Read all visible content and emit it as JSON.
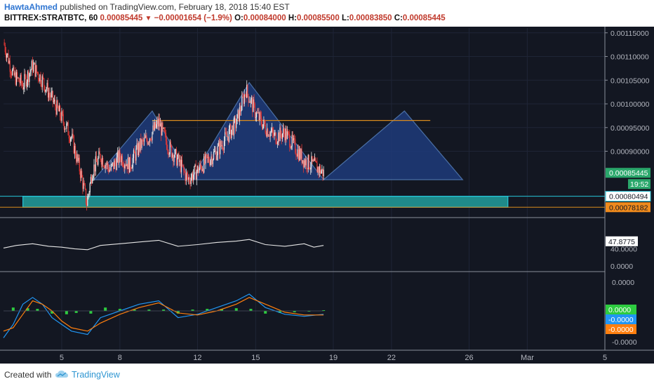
{
  "header": {
    "author": "HawtaAhmed",
    "published": "published on TradingView.com, February 18, 2018 15:40 EST",
    "symbol": "BITTREX:STRATBTC, 60",
    "last": "0.00085445",
    "change": "−0.00001654 (−1.9%)",
    "o_label": "O:",
    "o_value": "0.00084000",
    "h_label": "H:",
    "h_value": "0.00085500",
    "l_label": "L:",
    "l_value": "0.00083850",
    "c_label": "C:",
    "c_value": "0.00085445"
  },
  "footer": {
    "created_with": "Created with",
    "brand": "TradingView"
  },
  "colors": {
    "background": "#131722",
    "up": "#e9e9e9",
    "down": "#e53935",
    "triangle_fill": "#1f3b7a",
    "triangle_stroke": "#4a6fa5",
    "zone_fill": "#1f8a8a",
    "zone_stroke": "#26c6da",
    "resistance": "#d98a1d",
    "rsi": "#e6e6e6",
    "macd": "#2196f3",
    "signal": "#ff7f0e",
    "histogram": "#2ecc40",
    "last_price_bg": "#2aa76b",
    "countdown_bg": "#2aa76b",
    "cyan_label_bg": "#26c6da",
    "orange_label_bg": "#ef8a1c"
  },
  "chart_data": {
    "type": "candlestick",
    "price_axis": {
      "ticks": [
        "0.00115000",
        "0.00110000",
        "0.00105000",
        "0.00100000",
        "0.00095000",
        "0.00090000"
      ],
      "tick_values": [
        0.00115,
        0.0011,
        0.00105,
        0.001,
        0.00095,
        0.0009
      ],
      "range": [
        0.00076,
        0.00116
      ]
    },
    "time_axis": {
      "ticks": [
        "5",
        "8",
        "12",
        "15",
        "19",
        "22",
        "26",
        "Mar",
        "5"
      ],
      "tick_dates": [
        "2018-02-05",
        "2018-02-08",
        "2018-02-12",
        "2018-02-15",
        "2018-02-19",
        "2018-02-22",
        "2018-02-26",
        "2018-03-01",
        "2018-03-05"
      ],
      "range": [
        "2018-02-02",
        "2018-03-05"
      ]
    },
    "price_labels": {
      "last": "0.00085445",
      "countdown": "19:52",
      "zone_top": "0.00080494",
      "zone_bottom": "0.00078182"
    },
    "price_points": [
      {
        "t": "2018-02-02 00:00",
        "p": 0.00113
      },
      {
        "t": "2018-02-02 12:00",
        "p": 0.00106
      },
      {
        "t": "2018-02-03 00:00",
        "p": 0.00104
      },
      {
        "t": "2018-02-03 12:00",
        "p": 0.00108
      },
      {
        "t": "2018-02-04 00:00",
        "p": 0.00105
      },
      {
        "t": "2018-02-04 12:00",
        "p": 0.00101
      },
      {
        "t": "2018-02-05 00:00",
        "p": 0.00097
      },
      {
        "t": "2018-02-05 12:00",
        "p": 0.00093
      },
      {
        "t": "2018-02-06 00:00",
        "p": 0.00085
      },
      {
        "t": "2018-02-06 07:00",
        "p": 0.00079
      },
      {
        "t": "2018-02-06 14:00",
        "p": 0.00086
      },
      {
        "t": "2018-02-07 00:00",
        "p": 0.00089
      },
      {
        "t": "2018-02-07 12:00",
        "p": 0.00086
      },
      {
        "t": "2018-02-08 00:00",
        "p": 0.00089
      },
      {
        "t": "2018-02-08 12:00",
        "p": 0.00087
      },
      {
        "t": "2018-02-09 00:00",
        "p": 0.00091
      },
      {
        "t": "2018-02-09 12:00",
        "p": 0.00093
      },
      {
        "t": "2018-02-10 00:00",
        "p": 0.00096
      },
      {
        "t": "2018-02-10 12:00",
        "p": 0.00091
      },
      {
        "t": "2018-02-11 00:00",
        "p": 0.00088
      },
      {
        "t": "2018-02-11 12:00",
        "p": 0.00084
      },
      {
        "t": "2018-02-12 00:00",
        "p": 0.00086
      },
      {
        "t": "2018-02-12 12:00",
        "p": 0.00088
      },
      {
        "t": "2018-02-13 00:00",
        "p": 0.0009
      },
      {
        "t": "2018-02-13 12:00",
        "p": 0.00093
      },
      {
        "t": "2018-02-14 00:00",
        "p": 0.00096
      },
      {
        "t": "2018-02-14 12:00",
        "p": 0.00103
      },
      {
        "t": "2018-02-15 00:00",
        "p": 0.00098
      },
      {
        "t": "2018-02-15 12:00",
        "p": 0.00095
      },
      {
        "t": "2018-02-16 00:00",
        "p": 0.00093
      },
      {
        "t": "2018-02-16 12:00",
        "p": 0.00094
      },
      {
        "t": "2018-02-17 00:00",
        "p": 0.00091
      },
      {
        "t": "2018-02-17 12:00",
        "p": 0.00088
      },
      {
        "t": "2018-02-18 00:00",
        "p": 0.00087
      },
      {
        "t": "2018-02-18 12:00",
        "p": 0.00085445
      }
    ],
    "pattern_triangles": [
      {
        "base_left": [
          "2018-02-06 16:00",
          0.00084
        ],
        "apex": [
          "2018-02-09 16:00",
          0.000985
        ],
        "base_right": [
          "2018-02-11 16:00",
          0.00084
        ]
      },
      {
        "base_left": [
          "2018-02-11 16:00",
          0.00084
        ],
        "apex": [
          "2018-02-14 16:00",
          0.001045
        ],
        "base_right": [
          "2018-02-18 12:00",
          0.00084
        ]
      },
      {
        "base_left": [
          "2018-02-18 12:00",
          0.00084
        ],
        "apex": [
          "2018-02-22 16:00",
          0.000985
        ],
        "base_right": [
          "2018-02-25 16:00",
          0.00084
        ]
      }
    ],
    "resistance_line": {
      "from": "2018-02-09 16:00",
      "to": "2018-02-24 00:00",
      "price": 0.000965
    },
    "support_zone": {
      "from": "2018-02-03 00:00",
      "to": "2018-02-28 00:00",
      "top": 0.00080494,
      "bottom": 0.00078182
    },
    "rsi": {
      "axis_ticks": [
        "40.0000",
        "0.0000"
      ],
      "value_label": "47.8775",
      "points": [
        {
          "t": "2018-02-02 00:00",
          "v": 42
        },
        {
          "t": "2018-02-02 16:00",
          "v": 48
        },
        {
          "t": "2018-02-03 12:00",
          "v": 52
        },
        {
          "t": "2018-02-04 08:00",
          "v": 46
        },
        {
          "t": "2018-02-05 00:00",
          "v": 44
        },
        {
          "t": "2018-02-05 16:00",
          "v": 40
        },
        {
          "t": "2018-02-06 08:00",
          "v": 38
        },
        {
          "t": "2018-02-07 00:00",
          "v": 48
        },
        {
          "t": "2018-02-08 00:00",
          "v": 52
        },
        {
          "t": "2018-02-09 00:00",
          "v": 56
        },
        {
          "t": "2018-02-10 00:00",
          "v": 60
        },
        {
          "t": "2018-02-11 00:00",
          "v": 46
        },
        {
          "t": "2018-02-12 00:00",
          "v": 50
        },
        {
          "t": "2018-02-13 00:00",
          "v": 55
        },
        {
          "t": "2018-02-14 00:00",
          "v": 58
        },
        {
          "t": "2018-02-14 16:00",
          "v": 62
        },
        {
          "t": "2018-02-15 12:00",
          "v": 50
        },
        {
          "t": "2018-02-16 12:00",
          "v": 46
        },
        {
          "t": "2018-02-17 12:00",
          "v": 52
        },
        {
          "t": "2018-02-18 00:00",
          "v": 44
        },
        {
          "t": "2018-02-18 12:00",
          "v": 48
        }
      ]
    },
    "macd": {
      "axis_ticks": [
        "0.0000",
        "-0.0000"
      ],
      "labels": [
        "0.0000",
        "-0.0000",
        "-0.0000"
      ],
      "series": [
        {
          "name": "MACD",
          "points": [
            {
              "t": "2018-02-02 00:00",
              "v": -4e-05
            },
            {
              "t": "2018-02-02 12:00",
              "v": -2e-05
            },
            {
              "t": "2018-02-03 00:00",
              "v": 1e-05
            },
            {
              "t": "2018-02-03 12:00",
              "v": 2e-05
            },
            {
              "t": "2018-02-04 00:00",
              "v": 1e-05
            },
            {
              "t": "2018-02-04 12:00",
              "v": -1e-05
            },
            {
              "t": "2018-02-05 00:00",
              "v": -2e-05
            },
            {
              "t": "2018-02-05 12:00",
              "v": -3e-05
            },
            {
              "t": "2018-02-06 08:00",
              "v": -3.5e-05
            },
            {
              "t": "2018-02-07 00:00",
              "v": -1e-05
            },
            {
              "t": "2018-02-08 00:00",
              "v": 0.0
            },
            {
              "t": "2018-02-09 00:00",
              "v": 1e-05
            },
            {
              "t": "2018-02-10 00:00",
              "v": 1.5e-05
            },
            {
              "t": "2018-02-11 00:00",
              "v": -1e-05
            },
            {
              "t": "2018-02-12 00:00",
              "v": -5e-06
            },
            {
              "t": "2018-02-13 00:00",
              "v": 5e-06
            },
            {
              "t": "2018-02-14 00:00",
              "v": 1.5e-05
            },
            {
              "t": "2018-02-14 16:00",
              "v": 2.5e-05
            },
            {
              "t": "2018-02-15 12:00",
              "v": 5e-06
            },
            {
              "t": "2018-02-16 12:00",
              "v": -5e-06
            },
            {
              "t": "2018-02-17 12:00",
              "v": -8e-06
            },
            {
              "t": "2018-02-18 12:00",
              "v": -5e-06
            }
          ]
        },
        {
          "name": "Signal",
          "points": [
            {
              "t": "2018-02-02 00:00",
              "v": -3e-05
            },
            {
              "t": "2018-02-02 12:00",
              "v": -2.5e-05
            },
            {
              "t": "2018-02-03 00:00",
              "v": -5e-06
            },
            {
              "t": "2018-02-03 12:00",
              "v": 1.5e-05
            },
            {
              "t": "2018-02-04 00:00",
              "v": 1e-05
            },
            {
              "t": "2018-02-04 12:00",
              "v": 0.0
            },
            {
              "t": "2018-02-05 00:00",
              "v": -1.5e-05
            },
            {
              "t": "2018-02-05 12:00",
              "v": -2.5e-05
            },
            {
              "t": "2018-02-06 08:00",
              "v": -3e-05
            },
            {
              "t": "2018-02-07 00:00",
              "v": -1.8e-05
            },
            {
              "t": "2018-02-08 00:00",
              "v": -5e-06
            },
            {
              "t": "2018-02-09 00:00",
              "v": 5e-06
            },
            {
              "t": "2018-02-10 00:00",
              "v": 1.2e-05
            },
            {
              "t": "2018-02-11 00:00",
              "v": -3e-06
            },
            {
              "t": "2018-02-12 00:00",
              "v": -6e-06
            },
            {
              "t": "2018-02-13 00:00",
              "v": 0.0
            },
            {
              "t": "2018-02-14 00:00",
              "v": 1e-05
            },
            {
              "t": "2018-02-14 16:00",
              "v": 2e-05
            },
            {
              "t": "2018-02-15 12:00",
              "v": 1e-05
            },
            {
              "t": "2018-02-16 12:00",
              "v": -2e-06
            },
            {
              "t": "2018-02-17 12:00",
              "v": -6e-06
            },
            {
              "t": "2018-02-18 12:00",
              "v": -6e-06
            }
          ]
        }
      ],
      "histogram": [
        {
          "t": "2018-02-02 12:00",
          "v": 5e-06
        },
        {
          "t": "2018-02-03 06:00",
          "v": 4e-06
        },
        {
          "t": "2018-02-03 18:00",
          "v": 3e-06
        },
        {
          "t": "2018-02-04 12:00",
          "v": -4e-06
        },
        {
          "t": "2018-02-05 06:00",
          "v": -5e-06
        },
        {
          "t": "2018-02-05 18:00",
          "v": -3e-06
        },
        {
          "t": "2018-02-06 12:00",
          "v": -4e-06
        },
        {
          "t": "2018-02-07 06:00",
          "v": 5e-06
        },
        {
          "t": "2018-02-08 00:00",
          "v": 3e-06
        },
        {
          "t": "2018-02-08 18:00",
          "v": 2e-06
        },
        {
          "t": "2018-02-09 12:00",
          "v": 2e-06
        },
        {
          "t": "2018-02-10 06:00",
          "v": 2e-06
        },
        {
          "t": "2018-02-11 00:00",
          "v": -4e-06
        },
        {
          "t": "2018-02-11 18:00",
          "v": 2e-06
        },
        {
          "t": "2018-02-12 12:00",
          "v": 3e-06
        },
        {
          "t": "2018-02-13 06:00",
          "v": 3e-06
        },
        {
          "t": "2018-02-14 00:00",
          "v": 4e-06
        },
        {
          "t": "2018-02-14 18:00",
          "v": 3e-06
        },
        {
          "t": "2018-02-15 12:00",
          "v": -4e-06
        },
        {
          "t": "2018-02-16 06:00",
          "v": -3e-06
        },
        {
          "t": "2018-02-17 00:00",
          "v": -2e-06
        },
        {
          "t": "2018-02-17 18:00",
          "v": -1e-06
        },
        {
          "t": "2018-02-18 12:00",
          "v": 1e-06
        }
      ]
    }
  }
}
